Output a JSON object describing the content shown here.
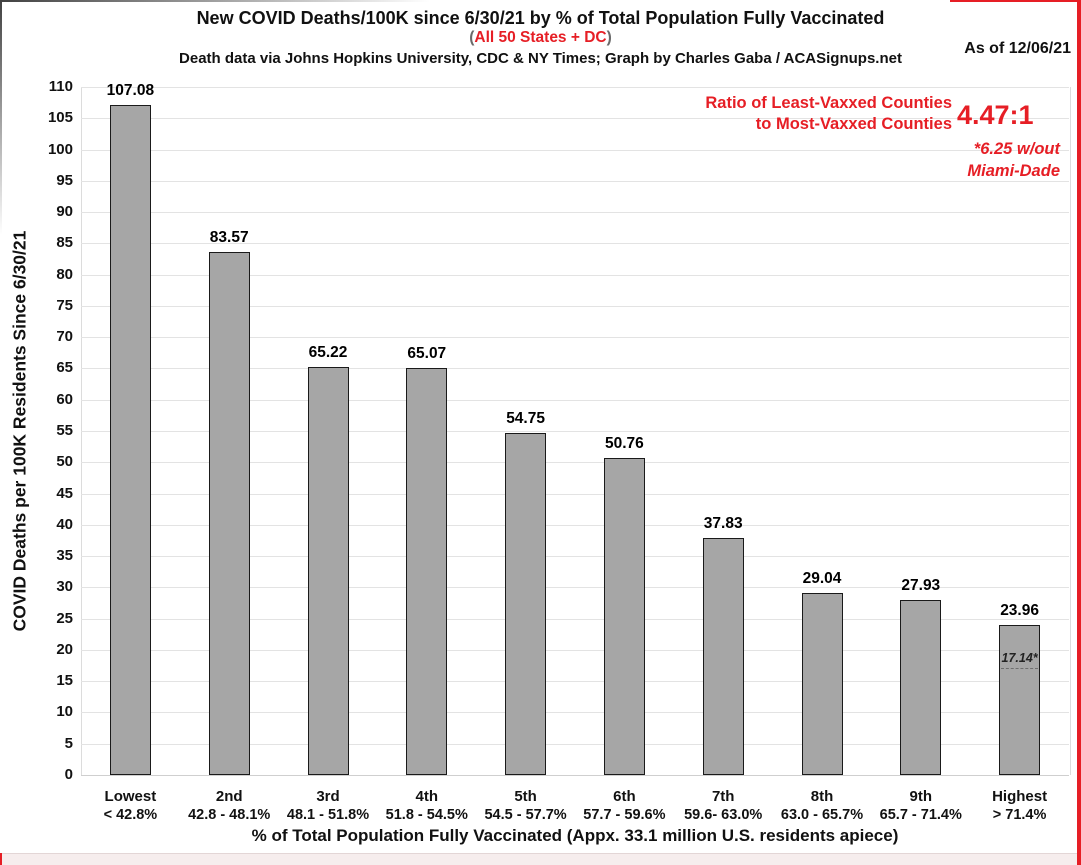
{
  "header": {
    "as_of": "As of 12/06/21"
  },
  "colors": {
    "red": "#e61e25",
    "bar_fill": "#a6a6a6",
    "bar_border": "#1a1a1a",
    "gridline": "#e3e3e3",
    "edge_pink": "#f6eded"
  },
  "annotation": {
    "line1": "Ratio of Least-Vaxxed Counties",
    "line2": "to Most-Vaxxed Counties",
    "ratio": "4.47:1",
    "note_line1": "*6.25 w/out",
    "note_line2": "Miami-Dade"
  },
  "chart_data": {
    "type": "bar",
    "title": "New COVID Deaths/100K since 6/30/21 by % of Total Population Fully Vaccinated",
    "subtitle_paren_open": "(",
    "subtitle": "All 50 States + DC",
    "subtitle_paren_close": ")",
    "credit": "Death data via Johns Hopkins University, CDC & NY Times; Graph by Charles Gaba / ACASignups.net",
    "xlabel": "% of Total Population Fully Vaccinated (Appx. 33.1 million U.S. residents apiece)",
    "ylabel": "COVID Deaths per 100K Residents Since 6/30/21",
    "ylim": [
      0,
      110
    ],
    "ytick_step": 5,
    "grid": true,
    "legend": "none",
    "categories": [
      "Lowest",
      "2nd",
      "3rd",
      "4th",
      "5th",
      "6th",
      "7th",
      "8th",
      "9th",
      "Highest"
    ],
    "category_ranges": [
      "< 42.8%",
      "42.8 - 48.1%",
      "48.1 - 51.8%",
      "51.8 - 54.5%",
      "54.5 - 57.7%",
      "57.7 - 59.6%",
      "59.6- 63.0%",
      "63.0 - 65.7%",
      "65.7 - 71.4%",
      "> 71.4%"
    ],
    "values": [
      107.08,
      83.57,
      65.22,
      65.07,
      54.75,
      50.76,
      37.83,
      29.04,
      27.93,
      23.96
    ],
    "inner_marker": {
      "category_index": 9,
      "label": "17.14*",
      "value": 17.14
    }
  }
}
